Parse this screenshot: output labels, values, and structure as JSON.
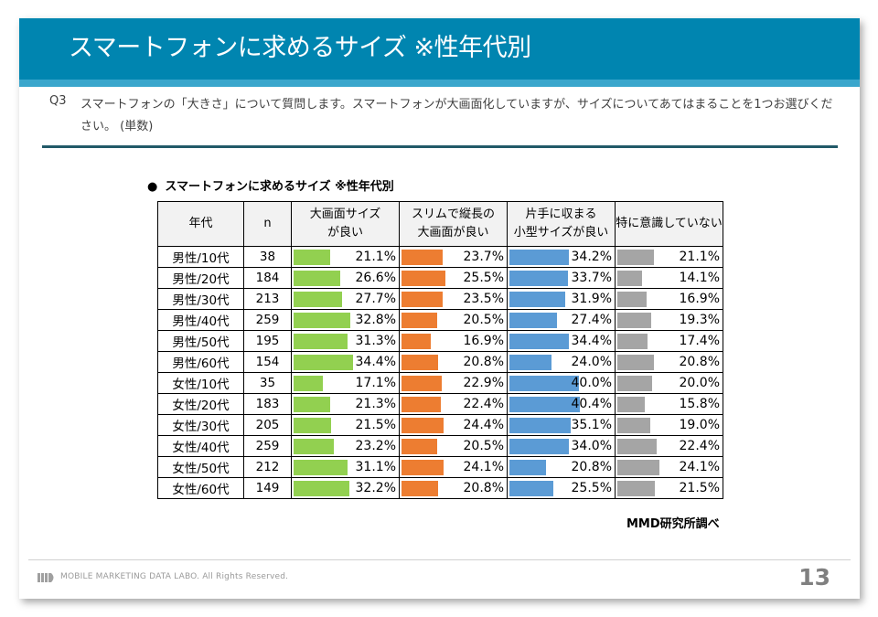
{
  "header": {
    "title": "スマートフォンに求めるサイズ ※性年代別"
  },
  "question": {
    "label": "Q3",
    "text": "スマートフォンの「大きさ」について質問します。スマートフォンが大画面化していますが、サイズについてあてはまることを1つお選びください。 (単数)"
  },
  "table_title": {
    "bullet": "●",
    "text": "スマートフォンに求めるサイズ ※性年代別"
  },
  "colors": {
    "large": "#92D050",
    "slim": "#ED7D31",
    "small": "#5B9BD5",
    "none": "#A5A5A5",
    "header_bg": "#0085B0"
  },
  "chart_data": {
    "type": "table",
    "title": "スマートフォンに求めるサイズ ※性年代別",
    "columns": [
      "年代",
      "n",
      "大画面サイズが良い",
      "スリムで縦長の大画面が良い",
      "片手に収まる小型サイズが良い",
      "特に意識していない"
    ],
    "column_headers": [
      {
        "line1": "年代",
        "line2": ""
      },
      {
        "line1": "n",
        "line2": ""
      },
      {
        "line1": "大画面サイズ",
        "line2": "が良い"
      },
      {
        "line1": "スリムで縦長の",
        "line2": "大画面が良い"
      },
      {
        "line1": "片手に収まる",
        "line2": "小型サイズが良い"
      },
      {
        "line1": "特に意識していない",
        "line2": ""
      }
    ],
    "unit": "%",
    "rows": [
      {
        "group": "男性/10代",
        "n": 38,
        "values": [
          21.1,
          23.7,
          34.2,
          21.1
        ]
      },
      {
        "group": "男性/20代",
        "n": 184,
        "values": [
          26.6,
          25.5,
          33.7,
          14.1
        ]
      },
      {
        "group": "男性/30代",
        "n": 213,
        "values": [
          27.7,
          23.5,
          31.9,
          16.9
        ]
      },
      {
        "group": "男性/40代",
        "n": 259,
        "values": [
          32.8,
          20.5,
          27.4,
          19.3
        ]
      },
      {
        "group": "男性/50代",
        "n": 195,
        "values": [
          31.3,
          16.9,
          34.4,
          17.4
        ]
      },
      {
        "group": "男性/60代",
        "n": 154,
        "values": [
          34.4,
          20.8,
          24.0,
          20.8
        ]
      },
      {
        "group": "女性/10代",
        "n": 35,
        "values": [
          17.1,
          22.9,
          40.0,
          20.0
        ]
      },
      {
        "group": "女性/20代",
        "n": 183,
        "values": [
          21.3,
          22.4,
          40.4,
          15.8
        ]
      },
      {
        "group": "女性/30代",
        "n": 205,
        "values": [
          21.5,
          24.4,
          35.1,
          19.0
        ]
      },
      {
        "group": "女性/40代",
        "n": 259,
        "values": [
          23.2,
          20.5,
          34.0,
          22.4
        ]
      },
      {
        "group": "女性/50代",
        "n": 212,
        "values": [
          31.1,
          24.1,
          20.8,
          24.1
        ]
      },
      {
        "group": "女性/60代",
        "n": 149,
        "values": [
          32.2,
          20.8,
          25.5,
          21.5
        ]
      }
    ]
  },
  "source": "MMD研究所調べ",
  "footer": {
    "logo_icon": "mmd-logo-icon",
    "copyright": "MOBILE MARKETING DATA LABO.  All Rights Reserved.",
    "page_number": "13"
  }
}
